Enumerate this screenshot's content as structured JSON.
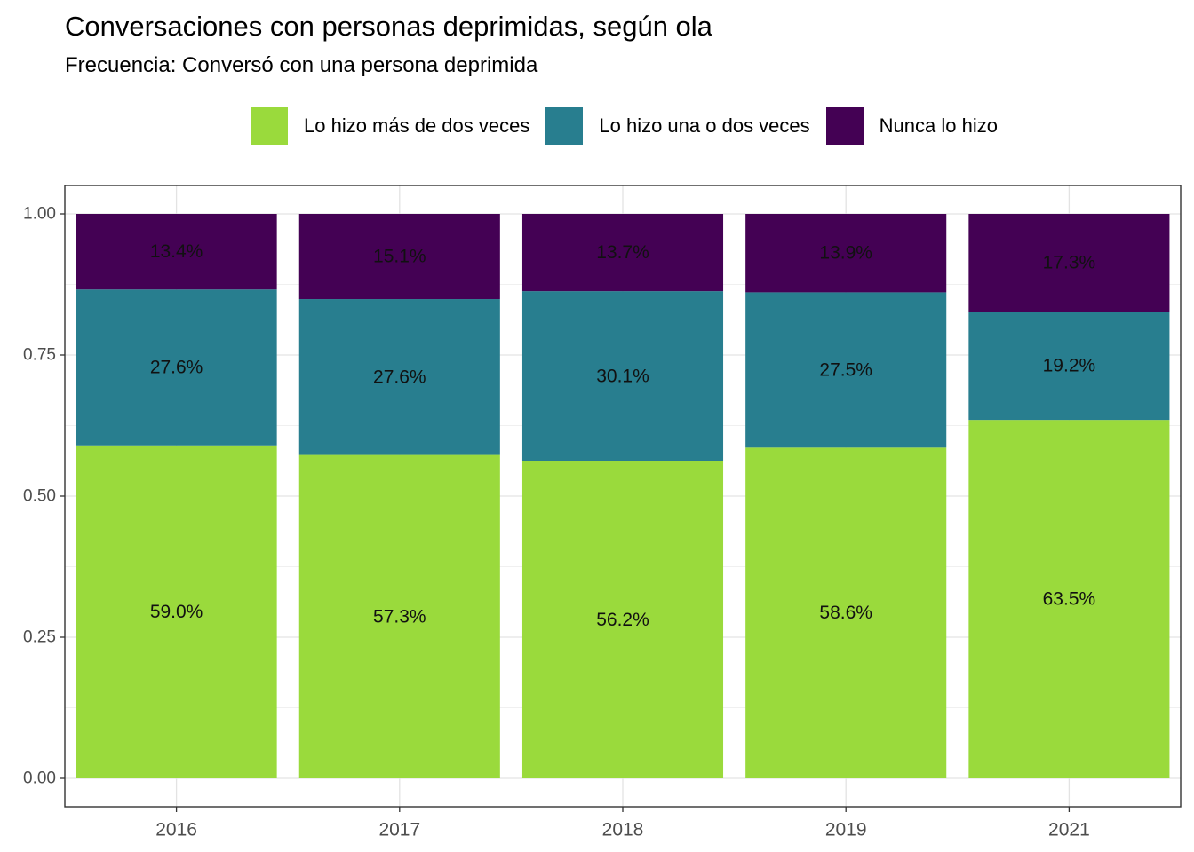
{
  "chart_data": {
    "type": "bar",
    "stacked": true,
    "title": "Conversaciones con personas deprimidas, según ola",
    "subtitle": "Frecuencia: Conversó con una persona deprimida",
    "xlabel": "",
    "ylabel": "",
    "categories": [
      "2016",
      "2017",
      "2018",
      "2019",
      "2021"
    ],
    "ylim": [
      0,
      1
    ],
    "yticks": [
      "0.00",
      "0.25",
      "0.50",
      "0.75",
      "1.00"
    ],
    "grid": true,
    "legend_position": "top",
    "series": [
      {
        "name": "Lo hizo más de dos veces",
        "color": "#9ADA3C",
        "values": [
          0.59,
          0.573,
          0.562,
          0.586,
          0.635
        ],
        "labels": [
          "59.0%",
          "57.3%",
          "56.2%",
          "58.6%",
          "63.5%"
        ]
      },
      {
        "name": "Lo hizo una o dos veces",
        "color": "#287E8F",
        "values": [
          0.276,
          0.276,
          0.301,
          0.275,
          0.192
        ],
        "labels": [
          "27.6%",
          "27.6%",
          "30.1%",
          "27.5%",
          "19.2%"
        ]
      },
      {
        "name": "Nunca lo hizo",
        "color": "#440154",
        "values": [
          0.134,
          0.151,
          0.137,
          0.139,
          0.173
        ],
        "labels": [
          "13.4%",
          "15.1%",
          "13.7%",
          "13.9%",
          "17.3%"
        ]
      }
    ]
  }
}
